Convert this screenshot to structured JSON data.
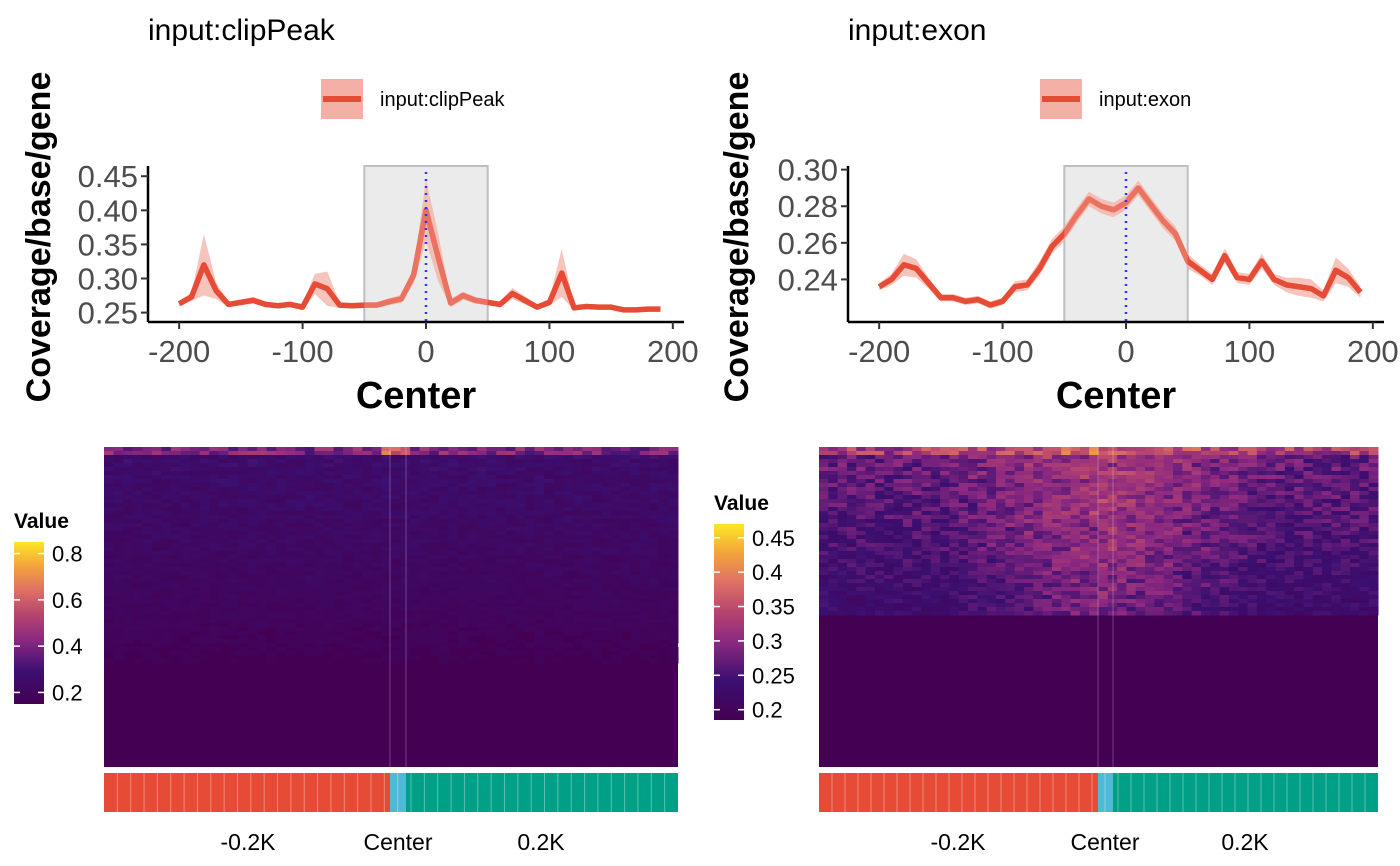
{
  "colors": {
    "line": "#E64B35",
    "ribbon": "#F4B0A6",
    "shade": "#EBEBEB",
    "shade_border": "#BFBFBF",
    "center_line": "#3333FF",
    "upstream": "#E64B35",
    "center": "#4DBBD5",
    "downstream": "#00A087",
    "viridis": [
      "#440154",
      "#3B0F70",
      "#8C2981",
      "#B5446E",
      "#DE7065",
      "#F3A33C",
      "#FDE725"
    ]
  },
  "chart_data": [
    {
      "type": "line",
      "title": "input:clipPeak",
      "legend": {
        "label": "input:clipPeak",
        "position": "top"
      },
      "xlabel": "Center",
      "ylabel": "Coverage/base/gene",
      "xlim": [
        -205,
        205
      ],
      "ylim": [
        0.245,
        0.465
      ],
      "xticks": [
        -200,
        -100,
        0,
        100,
        200
      ],
      "xtick_labels": [
        "-200",
        "-100",
        "0",
        "100",
        "200"
      ],
      "yticks": [
        0.25,
        0.3,
        0.35,
        0.4,
        0.45
      ],
      "ytick_labels": [
        "0.25",
        "0.30",
        "0.35",
        "0.40",
        "0.45"
      ],
      "shaded_region": [
        -50,
        50
      ],
      "center_marker": 0,
      "x": [
        -200,
        -190,
        -180,
        -170,
        -160,
        -150,
        -140,
        -130,
        -120,
        -110,
        -100,
        -90,
        -80,
        -70,
        -60,
        -50,
        -40,
        -30,
        -20,
        -10,
        0,
        10,
        20,
        30,
        40,
        50,
        60,
        70,
        80,
        90,
        100,
        110,
        120,
        130,
        140,
        150,
        160,
        170,
        180,
        190
      ],
      "y": [
        0.263,
        0.273,
        0.32,
        0.282,
        0.262,
        0.265,
        0.268,
        0.262,
        0.26,
        0.262,
        0.258,
        0.292,
        0.285,
        0.261,
        0.26,
        0.261,
        0.261,
        0.266,
        0.27,
        0.305,
        0.4,
        0.33,
        0.264,
        0.275,
        0.268,
        0.265,
        0.262,
        0.278,
        0.268,
        0.258,
        0.265,
        0.308,
        0.257,
        0.259,
        0.258,
        0.258,
        0.254,
        0.254,
        0.255,
        0.255
      ],
      "ribbon_halfwidth": [
        0.004,
        0.006,
        0.045,
        0.012,
        0.004,
        0.004,
        0.005,
        0.004,
        0.004,
        0.004,
        0.005,
        0.015,
        0.025,
        0.004,
        0.004,
        0.004,
        0.004,
        0.005,
        0.006,
        0.012,
        0.045,
        0.035,
        0.006,
        0.006,
        0.005,
        0.004,
        0.004,
        0.008,
        0.006,
        0.004,
        0.005,
        0.035,
        0.004,
        0.003,
        0.003,
        0.003,
        0.002,
        0.002,
        0.002,
        0.002
      ]
    },
    {
      "type": "line",
      "title": "input:exon",
      "legend": {
        "label": "input:exon",
        "position": "top"
      },
      "xlabel": "Center",
      "ylabel": "Coverage/base/gene",
      "xlim": [
        -205,
        205
      ],
      "ylim": [
        0.22,
        0.302
      ],
      "xticks": [
        -200,
        -100,
        0,
        100,
        200
      ],
      "xtick_labels": [
        "-200",
        "-100",
        "0",
        "100",
        "200"
      ],
      "yticks": [
        0.24,
        0.26,
        0.28,
        0.3
      ],
      "ytick_labels": [
        "0.24",
        "0.26",
        "0.28",
        "0.30"
      ],
      "shaded_region": [
        -50,
        50
      ],
      "center_marker": 0,
      "x": [
        -200,
        -190,
        -180,
        -170,
        -160,
        -150,
        -140,
        -130,
        -120,
        -110,
        -100,
        -90,
        -80,
        -70,
        -60,
        -50,
        -40,
        -30,
        -20,
        -10,
        0,
        10,
        20,
        30,
        40,
        50,
        60,
        70,
        80,
        90,
        100,
        110,
        120,
        130,
        140,
        150,
        160,
        170,
        180,
        190
      ],
      "y": [
        0.236,
        0.24,
        0.248,
        0.246,
        0.238,
        0.23,
        0.23,
        0.228,
        0.229,
        0.226,
        0.228,
        0.236,
        0.237,
        0.246,
        0.258,
        0.265,
        0.275,
        0.284,
        0.28,
        0.278,
        0.282,
        0.29,
        0.281,
        0.272,
        0.265,
        0.25,
        0.245,
        0.24,
        0.253,
        0.241,
        0.24,
        0.25,
        0.24,
        0.237,
        0.236,
        0.235,
        0.231,
        0.245,
        0.241,
        0.233
      ],
      "ribbon_halfwidth": [
        0.002,
        0.003,
        0.006,
        0.005,
        0.003,
        0.002,
        0.002,
        0.002,
        0.002,
        0.002,
        0.002,
        0.003,
        0.003,
        0.004,
        0.004,
        0.004,
        0.004,
        0.004,
        0.004,
        0.004,
        0.004,
        0.004,
        0.004,
        0.004,
        0.004,
        0.004,
        0.003,
        0.003,
        0.004,
        0.003,
        0.003,
        0.004,
        0.003,
        0.004,
        0.005,
        0.005,
        0.003,
        0.007,
        0.005,
        0.003
      ]
    },
    {
      "type": "heatmap",
      "legend_title": "Value",
      "legend_ticks": [
        0.2,
        0.4,
        0.6,
        0.8
      ],
      "legend_tick_labels": [
        "0.2",
        "0.4",
        "0.6",
        "0.8"
      ],
      "value_range": [
        0.15,
        0.85
      ],
      "xtick_labels": [
        "-0.2K",
        "Center",
        "0.2K"
      ],
      "annotation_bar": [
        "upstream",
        "center",
        "downstream"
      ]
    },
    {
      "type": "heatmap",
      "legend_title": "Value",
      "legend_ticks": [
        0.2,
        0.25,
        0.3,
        0.35,
        0.4,
        0.45
      ],
      "legend_tick_labels": [
        "0.2",
        "0.25",
        "0.3",
        "0.35",
        "0.4",
        "0.45"
      ],
      "value_range": [
        0.185,
        0.47
      ],
      "xtick_labels": [
        "-0.2K",
        "Center",
        "0.2K"
      ],
      "annotation_bar": [
        "upstream",
        "center",
        "downstream"
      ]
    }
  ]
}
